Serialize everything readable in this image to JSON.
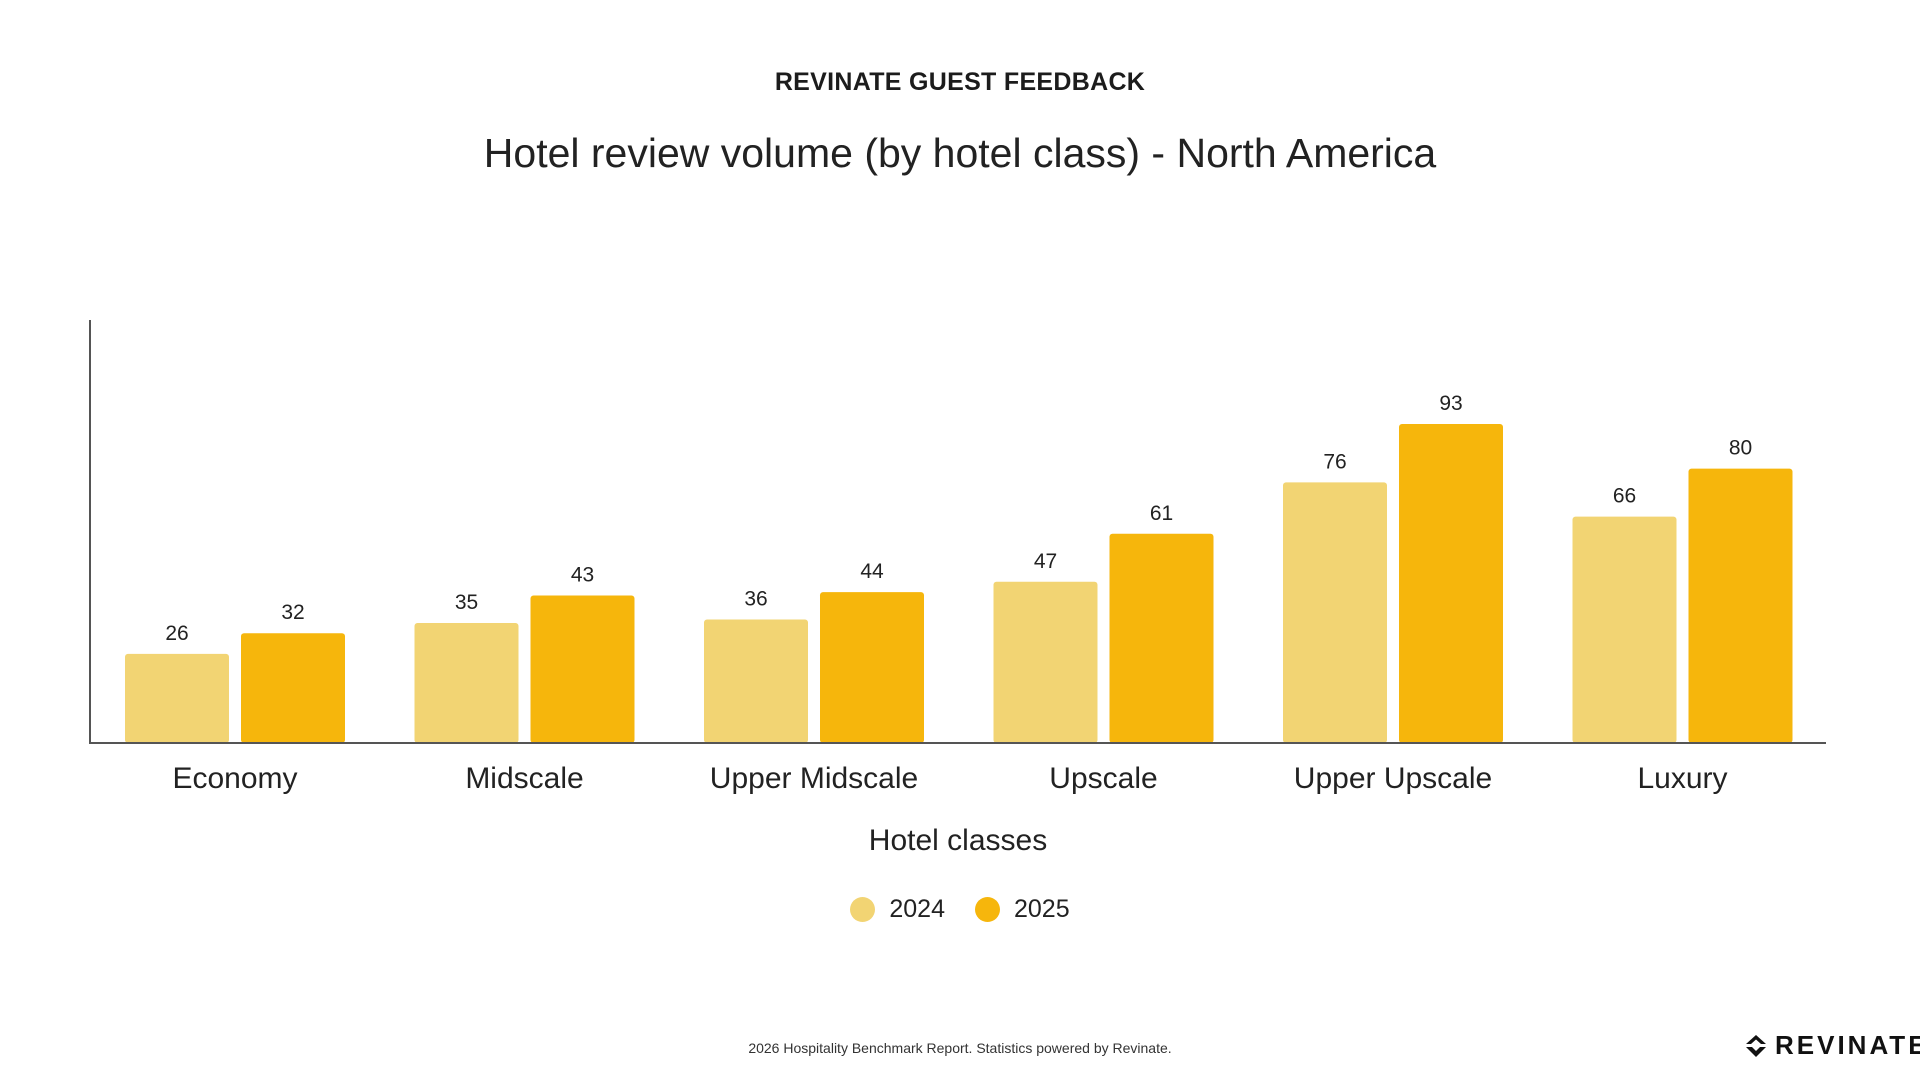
{
  "header": {
    "eyebrow": "REVINATE GUEST FEEDBACK",
    "title": "Hotel review volume (by hotel class) - North America"
  },
  "chart_data": {
    "type": "bar",
    "title": "Hotel review volume (by hotel class) - North America",
    "xlabel": "Hotel classes",
    "ylabel": "",
    "categories": [
      "Economy",
      "Midscale",
      "Upper Midscale",
      "Upscale",
      "Upper Upscale",
      "Luxury"
    ],
    "series": [
      {
        "name": "2024",
        "values": [
          26,
          35,
          36,
          47,
          76,
          66
        ],
        "color": "#F2D473"
      },
      {
        "name": "2025",
        "values": [
          32,
          43,
          44,
          61,
          93,
          80
        ],
        "color": "#F6B60C"
      }
    ],
    "ylim": [
      0,
      100
    ],
    "grid": false,
    "data_labels": true,
    "legend_position": "bottom-center"
  },
  "footer": {
    "note": "2026 Hospitality Benchmark Report. Statistics powered by Revinate."
  },
  "brand": {
    "wordmark": "REVINATE",
    "icon": "revinate-logo-icon"
  }
}
